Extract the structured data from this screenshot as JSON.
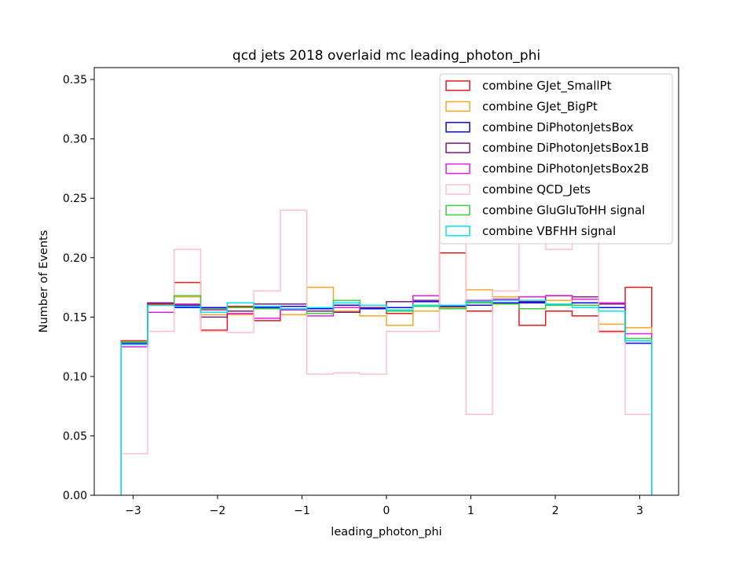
{
  "chart_data": {
    "type": "step-histogram",
    "title": "qcd jets 2018 overlaid mc leading_photon_phi",
    "xlabel": "leading_photon_phi",
    "ylabel": "Number of Events",
    "xlim": [
      -3.46,
      3.46
    ],
    "ylim": [
      0,
      0.36
    ],
    "xticks": [
      -3,
      -2,
      -1,
      0,
      1,
      2,
      3
    ],
    "xtick_labels": [
      "−3",
      "−2",
      "−1",
      "0",
      "1",
      "2",
      "3"
    ],
    "yticks": [
      0.0,
      0.05,
      0.1,
      0.15,
      0.2,
      0.25,
      0.3,
      0.35
    ],
    "ytick_labels": [
      "0.00",
      "0.05",
      "0.10",
      "0.15",
      "0.20",
      "0.25",
      "0.30",
      "0.35"
    ],
    "bin_edges": [
      -3.1416,
      -2.8274,
      -2.5133,
      -2.1991,
      -1.885,
      -1.5708,
      -1.2566,
      -0.9425,
      -0.6283,
      -0.3142,
      0.0,
      0.3142,
      0.6283,
      0.9425,
      1.2566,
      1.5708,
      1.885,
      2.1991,
      2.5133,
      2.8274,
      3.1416
    ],
    "legend_position": "upper right",
    "series": [
      {
        "name": "combine GJet_SmallPt",
        "color": "#e41a1c",
        "values": [
          0.13,
          0.161,
          0.179,
          0.139,
          0.159,
          0.147,
          0.157,
          0.155,
          0.158,
          0.158,
          0.153,
          0.155,
          0.204,
          0.155,
          0.162,
          0.143,
          0.155,
          0.151,
          0.138,
          0.175
        ]
      },
      {
        "name": "combine GJet_BigPt",
        "color": "#f5a623",
        "values": [
          0.127,
          0.162,
          0.167,
          0.152,
          0.152,
          0.158,
          0.152,
          0.175,
          0.155,
          0.151,
          0.143,
          0.155,
          0.158,
          0.173,
          0.167,
          0.167,
          0.164,
          0.162,
          0.144,
          0.141
        ]
      },
      {
        "name": "combine DiPhotonJetsBox",
        "color": "#0a0aee",
        "values": [
          0.128,
          0.16,
          0.158,
          0.158,
          0.162,
          0.158,
          0.159,
          0.157,
          0.16,
          0.157,
          0.158,
          0.163,
          0.159,
          0.16,
          0.162,
          0.162,
          0.16,
          0.162,
          0.158,
          0.128
        ]
      },
      {
        "name": "combine DiPhotonJetsBox1B",
        "color": "#7d1a7d",
        "values": [
          0.127,
          0.162,
          0.16,
          0.15,
          0.155,
          0.161,
          0.161,
          0.155,
          0.154,
          0.158,
          0.163,
          0.164,
          0.157,
          0.163,
          0.165,
          0.163,
          0.168,
          0.167,
          0.161,
          0.13
        ]
      },
      {
        "name": "combine DiPhotonJetsBox2B",
        "color": "#e020e0",
        "values": [
          0.125,
          0.154,
          0.161,
          0.156,
          0.153,
          0.149,
          0.156,
          0.151,
          0.158,
          0.16,
          0.156,
          0.168,
          0.157,
          0.164,
          0.165,
          0.167,
          0.168,
          0.165,
          0.162,
          0.136
        ]
      },
      {
        "name": "combine QCD_Jets",
        "color": "#ffc0cb",
        "values": [
          0.035,
          0.138,
          0.207,
          0.138,
          0.137,
          0.172,
          0.24,
          0.102,
          0.103,
          0.102,
          0.138,
          0.138,
          0.24,
          0.068,
          0.172,
          0.24,
          0.207,
          0.24,
          0.137,
          0.068
        ]
      },
      {
        "name": "combine GluGluToHH signal",
        "color": "#3ecc3e",
        "values": [
          0.129,
          0.16,
          0.168,
          0.157,
          0.158,
          0.157,
          0.157,
          0.153,
          0.164,
          0.16,
          0.155,
          0.159,
          0.157,
          0.162,
          0.161,
          0.157,
          0.16,
          0.16,
          0.155,
          0.132
        ]
      },
      {
        "name": "combine VBFHH signal",
        "color": "#00e5ee",
        "values": [
          0.127,
          0.16,
          0.159,
          0.154,
          0.162,
          0.159,
          0.157,
          0.158,
          0.162,
          0.16,
          0.156,
          0.16,
          0.16,
          0.163,
          0.164,
          0.164,
          0.161,
          0.158,
          0.155,
          0.13
        ]
      }
    ]
  }
}
